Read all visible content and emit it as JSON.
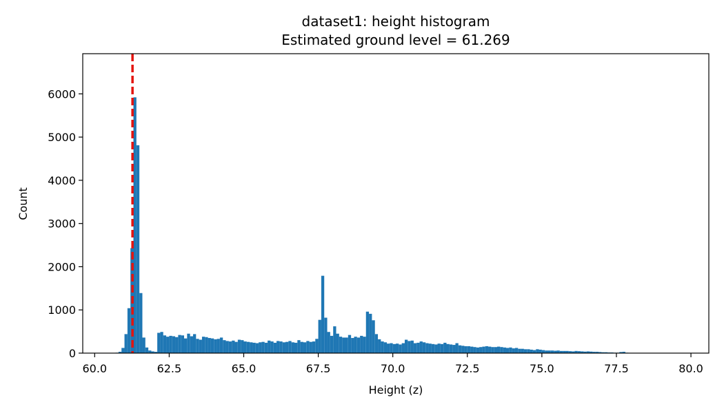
{
  "chart_data": {
    "type": "bar",
    "title": "dataset1: height histogram",
    "subtitle": "Estimated ground level = 61.269",
    "xlabel": "Height (z)",
    "ylabel": "Count",
    "xlim": [
      59.6,
      80.6
    ],
    "ylim": [
      0,
      6930
    ],
    "xticks": [
      60.0,
      62.5,
      65.0,
      67.5,
      70.0,
      72.5,
      75.0,
      77.5,
      80.0
    ],
    "yticks": [
      0,
      1000,
      2000,
      3000,
      4000,
      5000,
      6000
    ],
    "bin_width": 0.1,
    "bins": [
      [
        60.7,
        10
      ],
      [
        60.8,
        30
      ],
      [
        60.9,
        120
      ],
      [
        61.0,
        440
      ],
      [
        61.1,
        1040
      ],
      [
        61.2,
        2430
      ],
      [
        61.3,
        5920
      ],
      [
        61.4,
        4810
      ],
      [
        61.5,
        1390
      ],
      [
        61.6,
        360
      ],
      [
        61.7,
        130
      ],
      [
        61.8,
        60
      ],
      [
        61.9,
        40
      ],
      [
        62.0,
        30
      ],
      [
        62.1,
        470
      ],
      [
        62.2,
        490
      ],
      [
        62.3,
        410
      ],
      [
        62.4,
        380
      ],
      [
        62.5,
        400
      ],
      [
        62.6,
        390
      ],
      [
        62.7,
        370
      ],
      [
        62.8,
        420
      ],
      [
        62.9,
        410
      ],
      [
        63.0,
        340
      ],
      [
        63.1,
        450
      ],
      [
        63.2,
        390
      ],
      [
        63.3,
        440
      ],
      [
        63.4,
        330
      ],
      [
        63.5,
        310
      ],
      [
        63.6,
        380
      ],
      [
        63.7,
        370
      ],
      [
        63.8,
        350
      ],
      [
        63.9,
        340
      ],
      [
        64.0,
        320
      ],
      [
        64.1,
        330
      ],
      [
        64.2,
        360
      ],
      [
        64.3,
        300
      ],
      [
        64.4,
        280
      ],
      [
        64.5,
        270
      ],
      [
        64.6,
        290
      ],
      [
        64.7,
        260
      ],
      [
        64.8,
        310
      ],
      [
        64.9,
        300
      ],
      [
        65.0,
        270
      ],
      [
        65.1,
        260
      ],
      [
        65.2,
        250
      ],
      [
        65.3,
        240
      ],
      [
        65.4,
        230
      ],
      [
        65.5,
        250
      ],
      [
        65.6,
        260
      ],
      [
        65.7,
        240
      ],
      [
        65.8,
        290
      ],
      [
        65.9,
        270
      ],
      [
        66.0,
        240
      ],
      [
        66.1,
        280
      ],
      [
        66.2,
        270
      ],
      [
        66.3,
        250
      ],
      [
        66.4,
        260
      ],
      [
        66.5,
        280
      ],
      [
        66.6,
        250
      ],
      [
        66.7,
        240
      ],
      [
        66.8,
        300
      ],
      [
        66.9,
        260
      ],
      [
        67.0,
        250
      ],
      [
        67.1,
        280
      ],
      [
        67.2,
        260
      ],
      [
        67.3,
        270
      ],
      [
        67.4,
        330
      ],
      [
        67.5,
        770
      ],
      [
        67.6,
        1790
      ],
      [
        67.7,
        820
      ],
      [
        67.8,
        490
      ],
      [
        67.9,
        400
      ],
      [
        68.0,
        620
      ],
      [
        68.1,
        450
      ],
      [
        68.2,
        380
      ],
      [
        68.3,
        360
      ],
      [
        68.4,
        360
      ],
      [
        68.5,
        420
      ],
      [
        68.6,
        350
      ],
      [
        68.7,
        380
      ],
      [
        68.8,
        360
      ],
      [
        68.9,
        400
      ],
      [
        69.0,
        380
      ],
      [
        69.1,
        960
      ],
      [
        69.2,
        910
      ],
      [
        69.3,
        760
      ],
      [
        69.4,
        440
      ],
      [
        69.5,
        320
      ],
      [
        69.6,
        270
      ],
      [
        69.7,
        250
      ],
      [
        69.8,
        220
      ],
      [
        69.9,
        230
      ],
      [
        70.0,
        210
      ],
      [
        70.1,
        220
      ],
      [
        70.2,
        200
      ],
      [
        70.3,
        230
      ],
      [
        70.4,
        310
      ],
      [
        70.5,
        280
      ],
      [
        70.6,
        290
      ],
      [
        70.7,
        230
      ],
      [
        70.8,
        240
      ],
      [
        70.9,
        270
      ],
      [
        71.0,
        250
      ],
      [
        71.1,
        230
      ],
      [
        71.2,
        220
      ],
      [
        71.3,
        210
      ],
      [
        71.4,
        200
      ],
      [
        71.5,
        220
      ],
      [
        71.6,
        210
      ],
      [
        71.7,
        240
      ],
      [
        71.8,
        210
      ],
      [
        71.9,
        200
      ],
      [
        72.0,
        190
      ],
      [
        72.1,
        230
      ],
      [
        72.2,
        180
      ],
      [
        72.3,
        170
      ],
      [
        72.4,
        160
      ],
      [
        72.5,
        160
      ],
      [
        72.6,
        150
      ],
      [
        72.7,
        140
      ],
      [
        72.8,
        130
      ],
      [
        72.9,
        140
      ],
      [
        73.0,
        150
      ],
      [
        73.1,
        160
      ],
      [
        73.2,
        150
      ],
      [
        73.3,
        140
      ],
      [
        73.4,
        140
      ],
      [
        73.5,
        150
      ],
      [
        73.6,
        140
      ],
      [
        73.7,
        130
      ],
      [
        73.8,
        120
      ],
      [
        73.9,
        130
      ],
      [
        74.0,
        110
      ],
      [
        74.1,
        120
      ],
      [
        74.2,
        100
      ],
      [
        74.3,
        100
      ],
      [
        74.4,
        90
      ],
      [
        74.5,
        90
      ],
      [
        74.6,
        80
      ],
      [
        74.7,
        70
      ],
      [
        74.8,
        90
      ],
      [
        74.9,
        80
      ],
      [
        75.0,
        70
      ],
      [
        75.1,
        60
      ],
      [
        75.2,
        60
      ],
      [
        75.3,
        60
      ],
      [
        75.4,
        55
      ],
      [
        75.5,
        60
      ],
      [
        75.6,
        50
      ],
      [
        75.7,
        50
      ],
      [
        75.8,
        50
      ],
      [
        75.9,
        45
      ],
      [
        76.0,
        40
      ],
      [
        76.1,
        50
      ],
      [
        76.2,
        45
      ],
      [
        76.3,
        40
      ],
      [
        76.4,
        35
      ],
      [
        76.5,
        40
      ],
      [
        76.6,
        35
      ],
      [
        76.7,
        30
      ],
      [
        76.8,
        30
      ],
      [
        76.9,
        25
      ],
      [
        77.0,
        20
      ],
      [
        77.1,
        20
      ],
      [
        77.2,
        15
      ],
      [
        77.3,
        15
      ],
      [
        77.4,
        10
      ],
      [
        77.5,
        10
      ],
      [
        77.6,
        25
      ],
      [
        77.7,
        30
      ],
      [
        77.8,
        10
      ],
      [
        77.9,
        5
      ],
      [
        78.0,
        5
      ]
    ],
    "ground_level": 61.269,
    "colors": {
      "bars": "#1f77b4",
      "ground_line": "#e3140f"
    },
    "grid": false,
    "legend": "none"
  }
}
